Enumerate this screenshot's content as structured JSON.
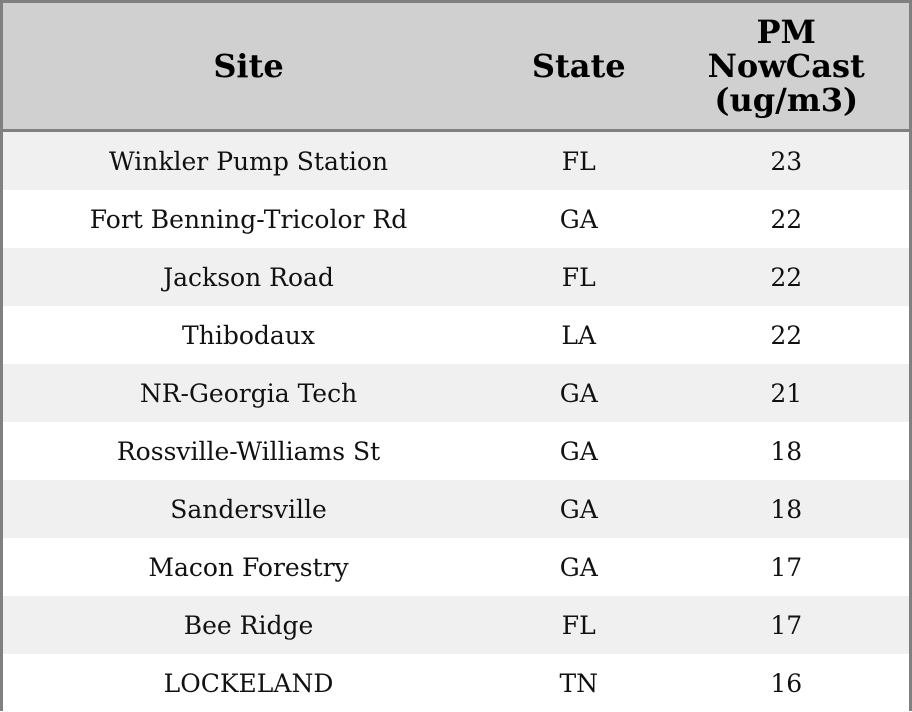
{
  "chart_data": {
    "type": "table",
    "columns": [
      "Site",
      "State",
      "PM\nNowCast\n(ug/m3)"
    ],
    "header_lines": {
      "site": [
        "Site"
      ],
      "state": [
        "State"
      ],
      "pm": [
        "PM",
        "NowCast",
        "(ug/m3)"
      ]
    },
    "rows": [
      {
        "site": "Winkler Pump Station",
        "state": "FL",
        "pm": 23
      },
      {
        "site": "Fort Benning-Tricolor Rd",
        "state": "GA",
        "pm": 22
      },
      {
        "site": "Jackson Road",
        "state": "FL",
        "pm": 22
      },
      {
        "site": "Thibodaux",
        "state": "LA",
        "pm": 22
      },
      {
        "site": "NR-Georgia Tech",
        "state": "GA",
        "pm": 21
      },
      {
        "site": "Rossville-Williams St",
        "state": "GA",
        "pm": 18
      },
      {
        "site": "Sandersville",
        "state": "GA",
        "pm": 18
      },
      {
        "site": "Macon Forestry",
        "state": "GA",
        "pm": 17
      },
      {
        "site": "Bee Ridge",
        "state": "FL",
        "pm": 17
      },
      {
        "site": "LOCKELAND",
        "state": "TN",
        "pm": 16
      }
    ]
  },
  "colors": {
    "header_bg": "#d0d0d0",
    "row_odd_bg": "#f0f0f0",
    "row_even_bg": "#ffffff",
    "border": "#808080"
  }
}
